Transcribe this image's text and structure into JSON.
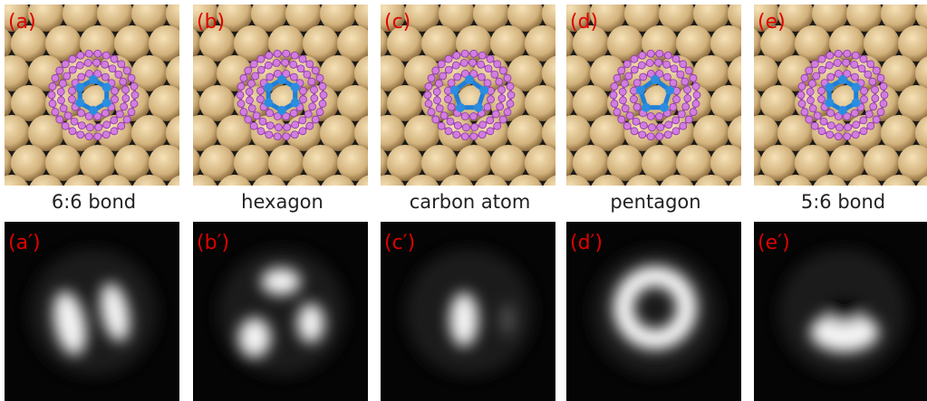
{
  "panels": [
    {
      "label": "(a)",
      "caption": "6:6 bond",
      "stm_label": "(a′)"
    },
    {
      "label": "(b)",
      "caption": "hexagon",
      "stm_label": "(b′)"
    },
    {
      "label": "(c)",
      "caption": "carbon atom",
      "stm_label": "(c′)"
    },
    {
      "label": "(d)",
      "caption": "pentagon",
      "stm_label": "(d′)"
    },
    {
      "label": "(e)",
      "caption": "5:6 bond",
      "stm_label": "(e′)"
    }
  ]
}
